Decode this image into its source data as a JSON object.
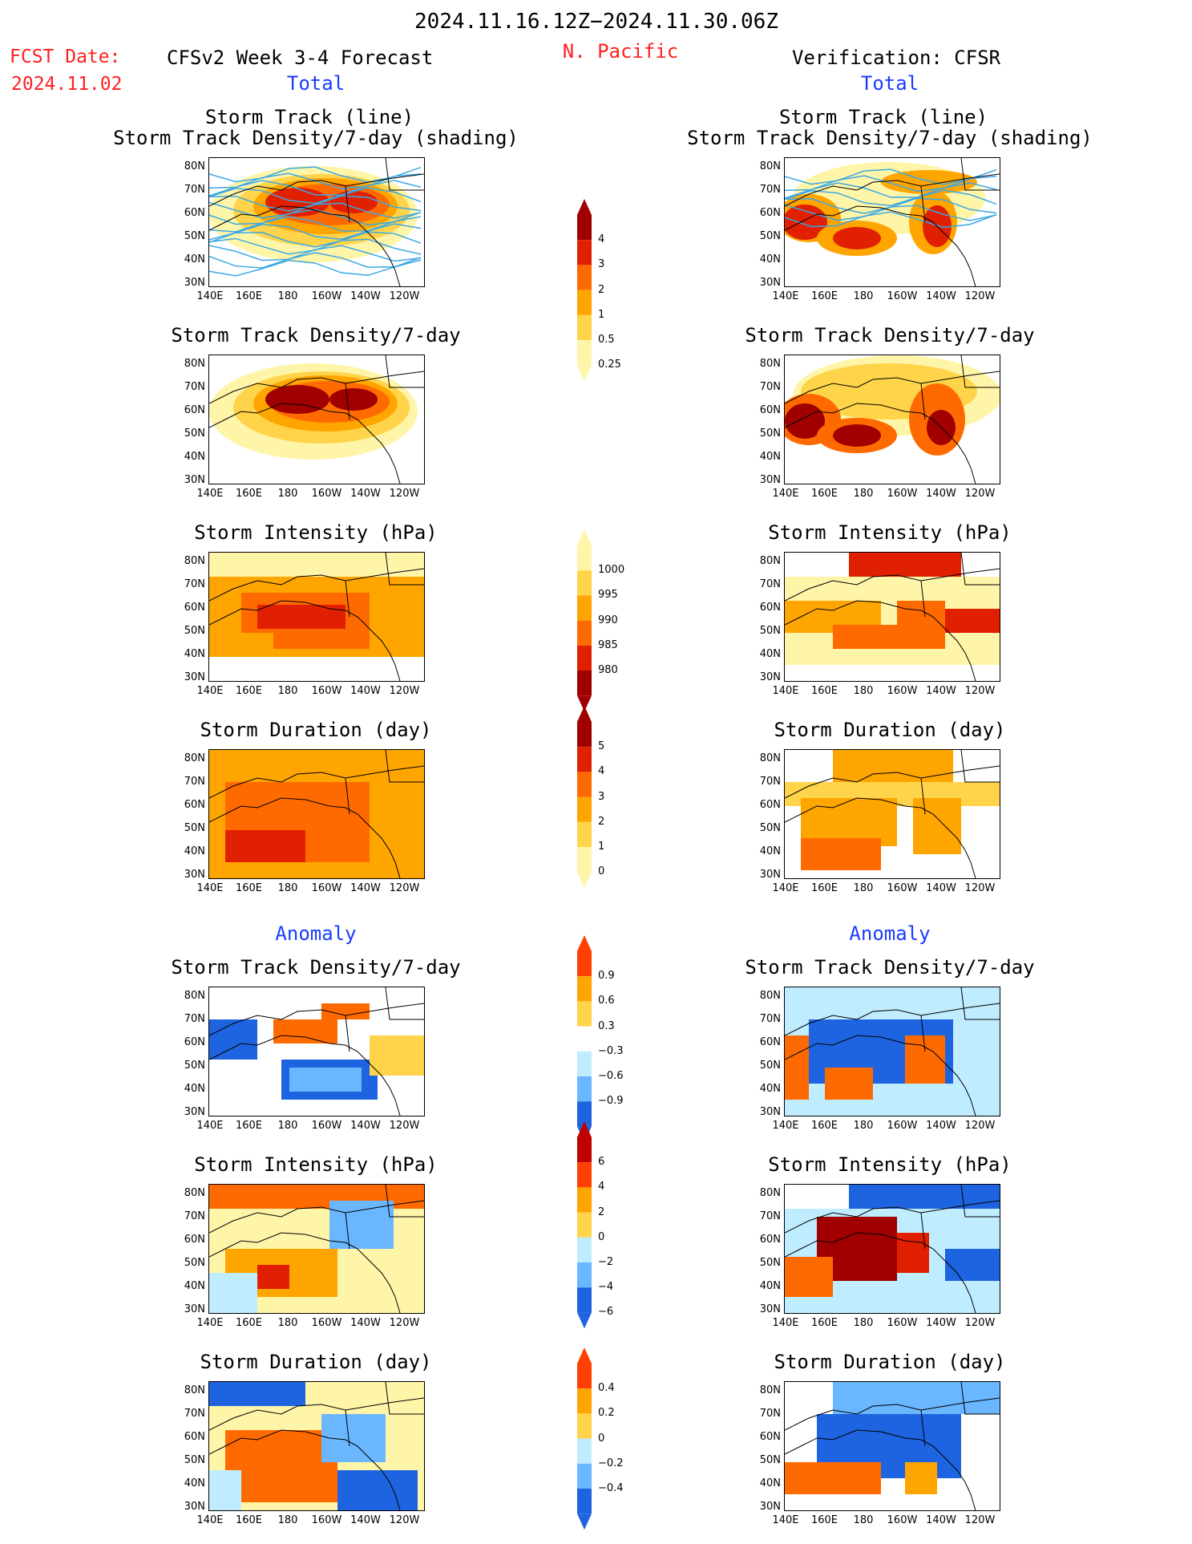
{
  "header": {
    "date_range": "2024.11.16.12Z−2024.11.30.06Z",
    "fcst_label": "FCST Date:",
    "fcst_date": "2024.11.02",
    "model_title": "CFSv2 Week 3-4 Forecast",
    "region": "N. Pacific",
    "verification": "Verification: CFSR"
  },
  "sections": {
    "total_left": "Total",
    "total_right": "Total",
    "anomaly_left": "Anomaly",
    "anomaly_right": "Anomaly"
  },
  "panels": {
    "track_line_title1": "Storm Track (line)",
    "track_line_title2": "Storm Track Density/7-day (shading)",
    "density_title": "Storm Track Density/7-day",
    "intensity_title": "Storm Intensity (hPa)",
    "duration_title": "Storm Duration (day)"
  },
  "axes": {
    "lat_ticks": [
      "80N",
      "70N",
      "60N",
      "50N",
      "40N",
      "30N"
    ],
    "lon_ticks": [
      "140E",
      "160E",
      "180",
      "160W",
      "140W",
      "120W"
    ]
  },
  "colorbars": {
    "density_total": [
      "4",
      "3",
      "2",
      "1",
      "0.5",
      "0.25"
    ],
    "intensity_total": [
      "1000",
      "995",
      "990",
      "985",
      "980"
    ],
    "duration_total": [
      "5",
      "4",
      "3",
      "2",
      "1",
      "0"
    ],
    "density_anom": [
      "0.9",
      "0.6",
      "0.3",
      "−0.3",
      "−0.6",
      "−0.9"
    ],
    "intensity_anom": [
      "6",
      "4",
      "2",
      "0",
      "−2",
      "−4",
      "−6"
    ],
    "duration_anom": [
      "0.4",
      "0.2",
      "0",
      "−0.2",
      "−0.4"
    ]
  },
  "colors": {
    "light_yellow": "#fff5a8",
    "yellow": "#ffd44a",
    "orange": "#ffa500",
    "dark_orange": "#ff6a00",
    "red": "#e02000",
    "dark_red": "#a00000",
    "light_blue": "#c0ecff",
    "mid_blue": "#6ab6ff",
    "blue": "#1e64e0",
    "track_line": "#3aa8e6"
  }
}
